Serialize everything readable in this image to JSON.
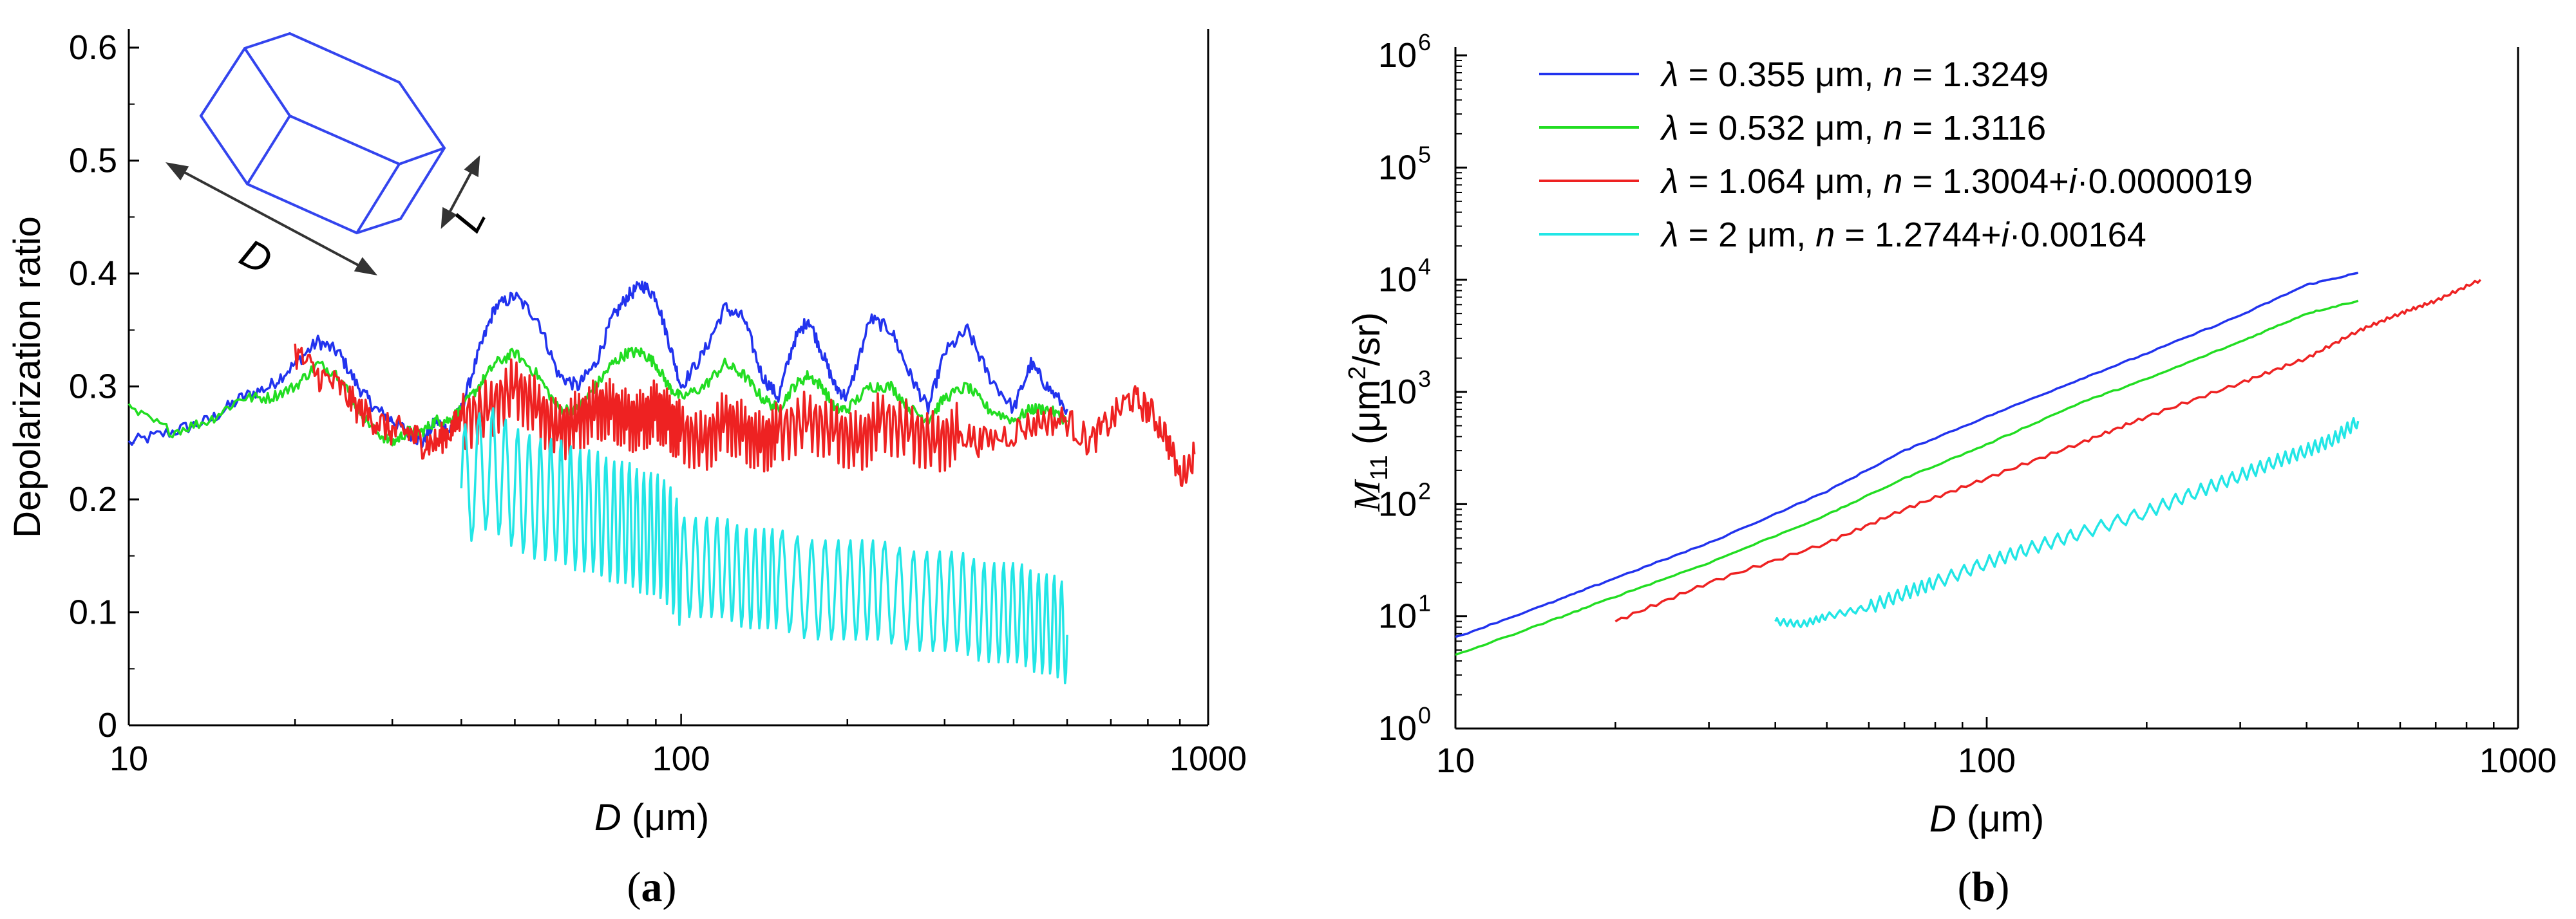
{
  "figure": {
    "panel_a_label": "a",
    "panel_b_label": "b",
    "inset_label_D": "D",
    "inset_label_L": "L"
  },
  "colors": {
    "blue": "#2233ee",
    "green": "#22dd22",
    "red": "#ee2222",
    "cyan": "#22e6e6",
    "axis": "#000000",
    "inset": "#3344ee"
  },
  "chart_data": [
    {
      "type": "line",
      "title": "",
      "xlabel_italic": "D",
      "xlabel_rest": " (μm)",
      "ylabel": "Depolarization ratio",
      "xscale": "log",
      "xlim": [
        10,
        900
      ],
      "ylim": [
        0,
        0.6
      ],
      "xticks": [
        10,
        100,
        1000
      ],
      "xtick_labels": [
        "10",
        "100",
        "1000"
      ],
      "yticks": [
        0,
        0.1,
        0.2,
        0.3,
        0.4,
        0.5,
        0.6
      ],
      "ytick_labels": [
        "0",
        "0.1",
        "0.2",
        "0.3",
        "0.4",
        "0.5",
        "0.6"
      ],
      "series": [
        {
          "name": "λ = 0.355 μm",
          "color": "blue",
          "x": [
            10,
            12,
            14,
            16,
            18,
            20,
            22,
            24,
            26,
            28,
            30,
            32,
            34,
            36,
            38,
            40,
            43,
            46,
            50,
            55,
            60,
            65,
            70,
            75,
            80,
            85,
            90,
            95,
            100,
            110,
            120,
            130,
            140,
            150,
            160,
            170,
            180,
            190,
            200,
            220,
            240,
            260,
            280,
            300,
            330,
            360,
            400,
            430,
            460,
            500
          ],
          "y": [
            0.25,
            0.26,
            0.27,
            0.29,
            0.3,
            0.32,
            0.34,
            0.33,
            0.3,
            0.28,
            0.27,
            0.26,
            0.25,
            0.27,
            0.26,
            0.28,
            0.33,
            0.37,
            0.38,
            0.36,
            0.31,
            0.3,
            0.32,
            0.36,
            0.38,
            0.39,
            0.38,
            0.34,
            0.3,
            0.33,
            0.37,
            0.36,
            0.31,
            0.29,
            0.34,
            0.36,
            0.33,
            0.3,
            0.29,
            0.36,
            0.35,
            0.31,
            0.28,
            0.33,
            0.35,
            0.31,
            0.28,
            0.32,
            0.3,
            0.28
          ]
        },
        {
          "name": "λ = 0.532 μm",
          "color": "green",
          "x": [
            10,
            12,
            14,
            16,
            18,
            20,
            22,
            24,
            26,
            28,
            30,
            32,
            34,
            36,
            38,
            40,
            43,
            46,
            50,
            55,
            60,
            65,
            70,
            75,
            80,
            85,
            90,
            95,
            100,
            110,
            120,
            130,
            140,
            150,
            160,
            170,
            180,
            190,
            200,
            220,
            240,
            260,
            280,
            300,
            330,
            360,
            400,
            430,
            460,
            500
          ],
          "y": [
            0.28,
            0.26,
            0.27,
            0.29,
            0.29,
            0.3,
            0.32,
            0.31,
            0.28,
            0.26,
            0.25,
            0.26,
            0.26,
            0.27,
            0.27,
            0.28,
            0.3,
            0.32,
            0.33,
            0.31,
            0.28,
            0.28,
            0.3,
            0.32,
            0.33,
            0.33,
            0.32,
            0.3,
            0.29,
            0.3,
            0.32,
            0.31,
            0.29,
            0.28,
            0.3,
            0.31,
            0.3,
            0.28,
            0.28,
            0.3,
            0.3,
            0.28,
            0.27,
            0.29,
            0.3,
            0.28,
            0.27,
            0.28,
            0.28,
            0.27
          ]
        },
        {
          "name": "λ = 1.064 μm",
          "color": "red",
          "x": [
            20,
            22,
            24,
            26,
            28,
            30,
            32,
            34,
            36,
            38,
            40,
            45,
            50,
            55,
            60,
            65,
            70,
            75,
            80,
            85,
            90,
            95,
            100,
            110,
            120,
            130,
            140,
            150,
            170,
            190,
            210,
            230,
            260,
            290,
            320,
            350,
            400,
            450,
            500,
            550,
            600,
            650,
            700,
            750,
            800,
            850
          ],
          "y": [
            0.33,
            0.31,
            0.3,
            0.28,
            0.27,
            0.26,
            0.26,
            0.25,
            0.25,
            0.26,
            0.27,
            0.28,
            0.3,
            0.28,
            0.26,
            0.27,
            0.28,
            0.28,
            0.27,
            0.27,
            0.28,
            0.27,
            0.26,
            0.25,
            0.27,
            0.26,
            0.25,
            0.26,
            0.27,
            0.26,
            0.25,
            0.27,
            0.26,
            0.25,
            0.26,
            0.25,
            0.26,
            0.27,
            0.27,
            0.25,
            0.27,
            0.29,
            0.28,
            0.26,
            0.22,
            0.24
          ]
        },
        {
          "name": "λ = 2 μm",
          "color": "cyan",
          "x": [
            40,
            45,
            50,
            55,
            60,
            65,
            70,
            75,
            80,
            85,
            90,
            95,
            100,
            110,
            120,
            130,
            140,
            150,
            170,
            190,
            210,
            230,
            260,
            290,
            320,
            350,
            380,
            410,
            440,
            470,
            500
          ],
          "y": [
            0.21,
            0.23,
            0.21,
            0.2,
            0.2,
            0.19,
            0.19,
            0.18,
            0.18,
            0.17,
            0.17,
            0.16,
            0.14,
            0.14,
            0.14,
            0.13,
            0.13,
            0.13,
            0.12,
            0.12,
            0.12,
            0.12,
            0.11,
            0.11,
            0.11,
            0.1,
            0.1,
            0.1,
            0.09,
            0.09,
            0.08
          ]
        }
      ]
    },
    {
      "type": "line",
      "title": "",
      "xlabel_italic": "D",
      "xlabel_rest": " (μm)",
      "ylabel_main": "M",
      "ylabel_sub": "11",
      "ylabel_units": " (μm",
      "ylabel_sup": "2",
      "ylabel_end": "/sr)",
      "xscale": "log",
      "yscale": "log",
      "xlim": [
        10,
        1000
      ],
      "ylim": [
        1,
        1000000
      ],
      "xticks": [
        10,
        100,
        1000
      ],
      "xtick_labels": [
        "10",
        "100",
        "1000"
      ],
      "yticks": [
        1,
        10,
        100,
        1000,
        10000,
        100000,
        1000000
      ],
      "ytick_base": "10",
      "ytick_exponents": [
        "0",
        "1",
        "2",
        "3",
        "4",
        "5",
        "6"
      ],
      "legend_position": "top-left",
      "legend": [
        {
          "color": "blue",
          "lam_sym": "λ",
          "lam_val": " = 0.355 μm,  ",
          "n_sym": "n",
          "n_val": " = 1.3249"
        },
        {
          "color": "green",
          "lam_sym": "λ",
          "lam_val": " = 0.532 μm,  ",
          "n_sym": "n",
          "n_val": " = 1.3116"
        },
        {
          "color": "red",
          "lam_sym": "λ",
          "lam_val": " = 1.064 μm,  ",
          "n_sym": "n",
          "n_val": " = 1.3004+",
          "i_sym": "i",
          "i_val": "·0.0000019"
        },
        {
          "color": "cyan",
          "lam_sym": "λ",
          "lam_val": " = 2 μm,  ",
          "n_sym": "n",
          "n_val": " = 1.2744+",
          "i_sym": "i",
          "i_val": "·0.00164"
        }
      ],
      "series": [
        {
          "name": "λ = 0.355 μm",
          "color": "blue",
          "x": [
            10,
            15,
            20,
            30,
            50,
            70,
            100,
            150,
            200,
            300,
            400,
            500
          ],
          "y": [
            6.5,
            13,
            22,
            45,
            130,
            300,
            600,
            1300,
            2200,
            4800,
            9000,
            11500
          ]
        },
        {
          "name": "λ = 0.532 μm",
          "color": "green",
          "x": [
            10,
            15,
            20,
            30,
            50,
            70,
            100,
            150,
            200,
            300,
            400,
            500
          ],
          "y": [
            4.5,
            9,
            15,
            30,
            80,
            170,
            340,
            800,
            1300,
            2800,
            5000,
            6500
          ]
        },
        {
          "name": "λ = 1.064 μm",
          "color": "red",
          "x": [
            20,
            30,
            50,
            70,
            100,
            150,
            200,
            300,
            400,
            500,
            600,
            700,
            850
          ],
          "y": [
            9,
            20,
            45,
            90,
            170,
            350,
            600,
            1200,
            2000,
            3500,
            5000,
            6500,
            10000
          ]
        },
        {
          "name": "λ = 2 μm",
          "color": "cyan",
          "x": [
            40,
            45,
            50,
            60,
            70,
            80,
            100,
            120,
            150,
            200,
            250,
            300,
            350,
            400,
            450,
            500
          ],
          "y": [
            9,
            8.5,
            10,
            12,
            16,
            20,
            30,
            40,
            55,
            85,
            130,
            180,
            240,
            300,
            380,
            550
          ]
        }
      ]
    }
  ]
}
